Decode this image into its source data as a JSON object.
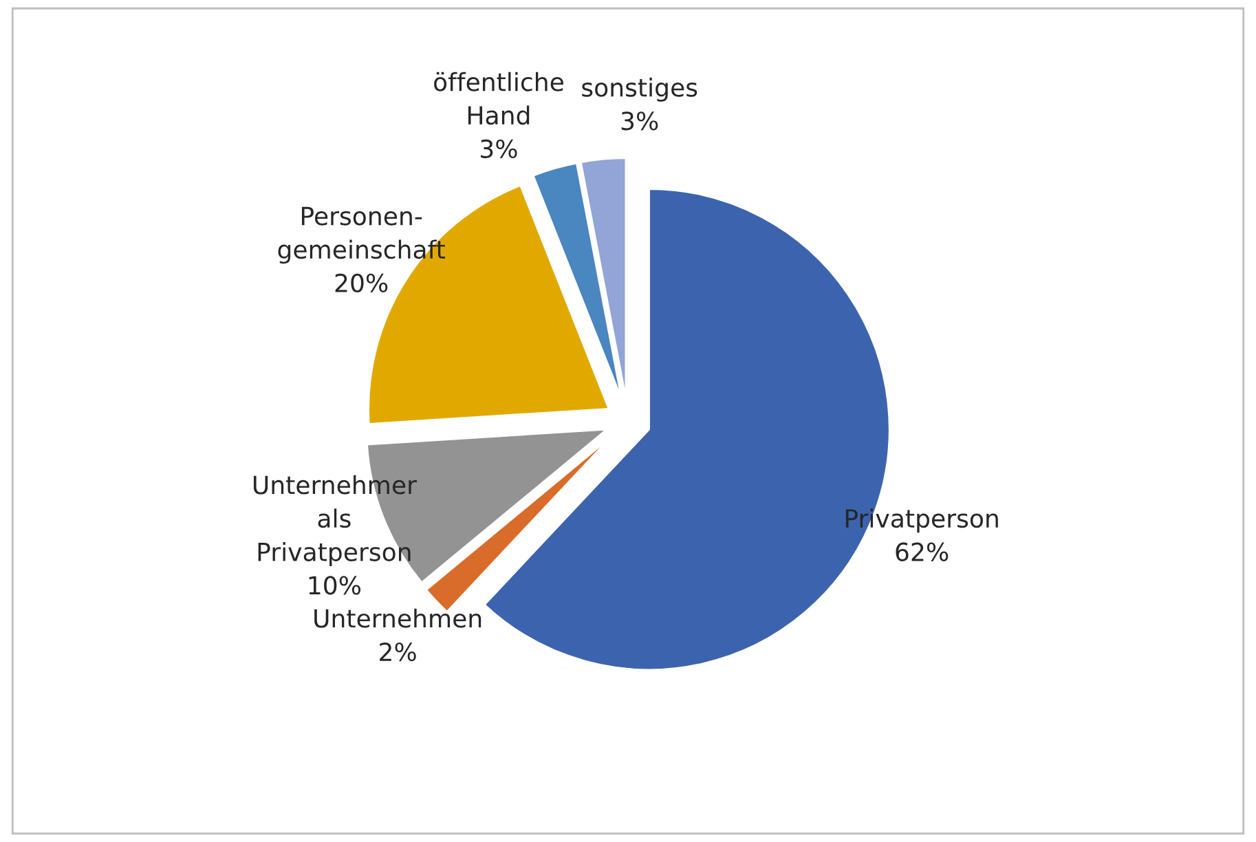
{
  "chart_data": {
    "type": "pie",
    "categories": [
      "Privatperson",
      "Unternehmen",
      "Unternehmer\nals\nPrivatperson",
      "Personen-\ngemeinschaft",
      "öffentliche\nHand",
      "sonstiges"
    ],
    "values": [
      62,
      2,
      10,
      20,
      3,
      3
    ],
    "value_labels": [
      "62%",
      "2%",
      "10%",
      "20%",
      "3%",
      "3%"
    ],
    "colors": [
      "#3c64ae",
      "#d96c2a",
      "#939393",
      "#e1a900",
      "#4a86c0",
      "#93a4d6"
    ],
    "legend": false
  }
}
